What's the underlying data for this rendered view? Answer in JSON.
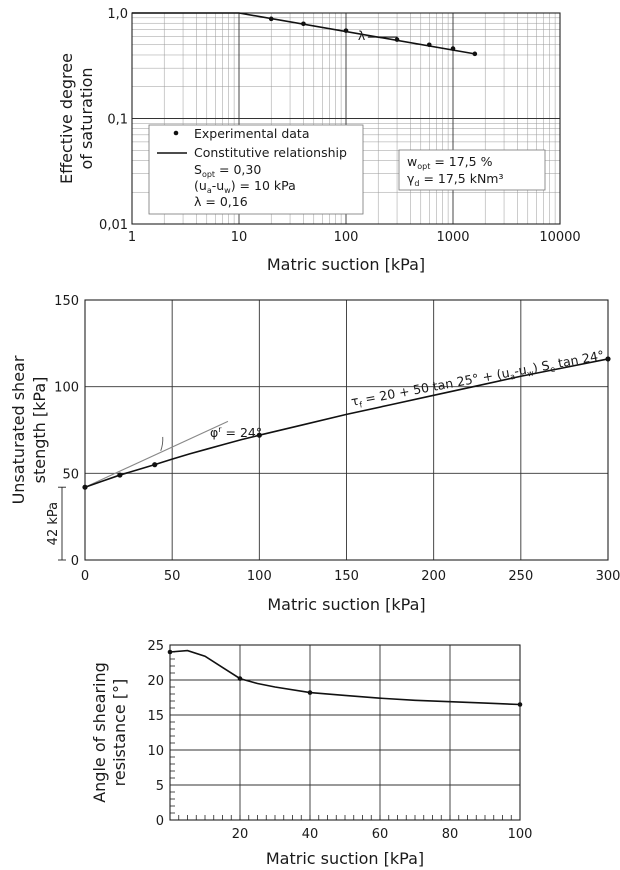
{
  "chart_data": [
    {
      "type": "line",
      "xscale": "log",
      "yscale": "log",
      "xlabel": "Matric suction [kPa]",
      "ylabel_lines": [
        "Effective degree",
        "of saturation"
      ],
      "xlim": [
        1,
        10000
      ],
      "ylim": [
        0.01,
        1
      ],
      "x_ticks": [
        1,
        10,
        100,
        1000,
        10000
      ],
      "x_tick_labels": [
        "1",
        "10",
        "100",
        "1000",
        "10000"
      ],
      "y_ticks": [
        0.01,
        0.1,
        1
      ],
      "y_tick_labels": [
        "0,01",
        "0,1",
        "1,0"
      ],
      "grid": true,
      "series": [
        {
          "name": "Experimental data",
          "kind": "points",
          "x": [
            20,
            40,
            100,
            300,
            600,
            1000,
            1600
          ],
          "y": [
            0.88,
            0.79,
            0.68,
            0.56,
            0.5,
            0.46,
            0.41
          ]
        },
        {
          "name": "Constitutive relationship",
          "kind": "line",
          "x": [
            1,
            10,
            1600
          ],
          "y": [
            1,
            1,
            0.41
          ]
        }
      ],
      "legend": {
        "placement": "bottom-left",
        "entries": [
          "Experimental data",
          "Constitutive relationship"
        ],
        "params": [
          {
            "sym": "S",
            "sub": "opt",
            "rest": " = 0,30"
          },
          {
            "sym": "(u",
            "sub": "a",
            "mid": "-u",
            "sub2": "w",
            "rest": ") = 10 kPa"
          },
          {
            "sym": "λ",
            "rest": " = 0,16"
          }
        ]
      },
      "info_box": [
        {
          "sym": "w",
          "sub": "opt",
          "rest": " = 17,5 %"
        },
        {
          "sym": "γ",
          "sub": "d",
          "rest": " = 17,5 kNm³"
        }
      ],
      "slope_label": "λ"
    },
    {
      "type": "line",
      "xlabel": "Matric suction [kPa]",
      "ylabel_lines": [
        "Unsaturated shear",
        "stength [kPa]"
      ],
      "xlim": [
        0,
        300
      ],
      "ylim": [
        0,
        150
      ],
      "x_ticks": [
        0,
        50,
        100,
        150,
        200,
        250,
        300
      ],
      "y_ticks": [
        0,
        50,
        100,
        150
      ],
      "grid": true,
      "series": [
        {
          "name": "Experimental data",
          "kind": "points",
          "x": [
            0,
            20,
            40,
            100,
            300
          ],
          "y": [
            42,
            49,
            55,
            72,
            116
          ]
        },
        {
          "name": "Fit",
          "kind": "curve",
          "x": [
            0,
            10,
            20,
            30,
            40,
            50,
            60,
            70,
            80,
            90,
            100,
            125,
            150,
            175,
            200,
            225,
            250,
            275,
            300
          ],
          "y": [
            42,
            45.5,
            49,
            52,
            55,
            58.2,
            61.2,
            64,
            66.8,
            69.5,
            72,
            78,
            84,
            89.5,
            95,
            100.5,
            106,
            111,
            116
          ]
        },
        {
          "name": "Tangent",
          "kind": "line",
          "x": [
            0,
            82
          ],
          "y": [
            42,
            80
          ]
        }
      ],
      "equation": {
        "a": "τ",
        "a_sub": "f",
        "b": " = 20 + 50 tan 25° + (u",
        "b_sub": "a",
        "c": "-u",
        "c_sub": "w",
        "d": ") S",
        "d_sub": "e",
        "e": " tan 24°"
      },
      "phi_label": {
        "sym": "φ",
        "sup": "r",
        "rest": " = 24°"
      },
      "dim_label": "42 kPa"
    },
    {
      "type": "line",
      "xlabel": "Matric suction [kPa]",
      "ylabel_lines": [
        "Angle of shearing",
        "resistance [°]"
      ],
      "xlim": [
        0,
        100
      ],
      "ylim": [
        0,
        25
      ],
      "x_ticks": [
        0,
        20,
        40,
        60,
        80,
        100
      ],
      "x_tick_labels": [
        "",
        "20",
        "40",
        "60",
        "80",
        "100"
      ],
      "y_ticks": [
        0,
        5,
        10,
        15,
        20,
        25
      ],
      "grid": true,
      "series": [
        {
          "name": "Experimental data",
          "kind": "points",
          "x": [
            0,
            20,
            40,
            100
          ],
          "y": [
            24,
            20.2,
            18.2,
            16.5
          ]
        },
        {
          "name": "Fit",
          "kind": "curve",
          "x": [
            0,
            5,
            10,
            15,
            20,
            25,
            30,
            40,
            50,
            60,
            70,
            80,
            90,
            100
          ],
          "y": [
            24,
            24.2,
            23.4,
            21.8,
            20.2,
            19.5,
            19,
            18.2,
            17.8,
            17.4,
            17.1,
            16.9,
            16.7,
            16.5
          ]
        }
      ]
    }
  ]
}
